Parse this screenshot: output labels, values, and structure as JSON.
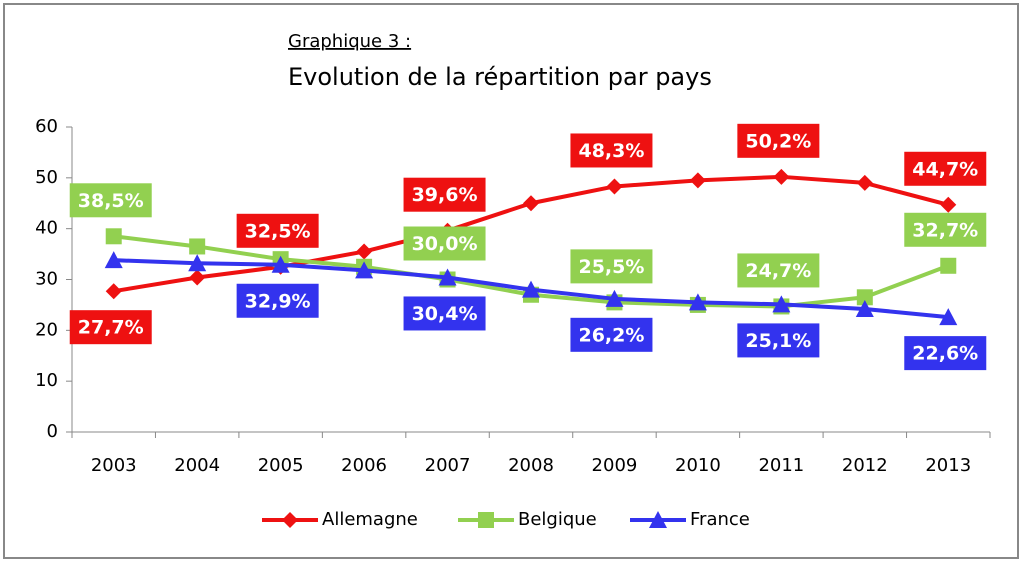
{
  "chart_data": {
    "type": "line",
    "subtitle": "Graphique 3 :",
    "title": "Evolution de la répartition par pays",
    "categories": [
      "2003",
      "2004",
      "2005",
      "2006",
      "2007",
      "2008",
      "2009",
      "2010",
      "2011",
      "2012",
      "2013"
    ],
    "series": [
      {
        "name": "Allemagne",
        "color": "#ee1111",
        "marker": "diamond",
        "values": [
          27.7,
          30.4,
          32.5,
          35.5,
          39.6,
          45.0,
          48.3,
          49.5,
          50.2,
          49.0,
          44.7
        ],
        "value_labels": [
          "27,7%",
          null,
          "32,5%",
          null,
          "39,6%",
          null,
          "48,3%",
          null,
          "50,2%",
          null,
          "44,7%"
        ]
      },
      {
        "name": "Belgique",
        "color": "#92d050",
        "marker": "square",
        "values": [
          38.5,
          36.5,
          34.0,
          32.5,
          30.0,
          27.0,
          25.5,
          25.0,
          24.7,
          26.5,
          32.7
        ],
        "value_labels": [
          "38,5%",
          null,
          null,
          null,
          "30,0%",
          null,
          "25,5%",
          null,
          "24,7%",
          null,
          "32,7%"
        ]
      },
      {
        "name": "France",
        "color": "#3333ee",
        "marker": "triangle",
        "values": [
          33.8,
          33.2,
          32.9,
          31.8,
          30.4,
          28.0,
          26.2,
          25.5,
          25.1,
          24.2,
          22.6
        ],
        "value_labels": [
          null,
          null,
          "32,9%",
          null,
          "30,4%",
          null,
          "26,2%",
          null,
          "25,1%",
          null,
          "22,6%"
        ]
      }
    ],
    "ylim": [
      0,
      60
    ],
    "yticks": [
      0,
      10,
      20,
      30,
      40,
      50,
      60
    ],
    "grid": false,
    "legend": "bottom"
  }
}
